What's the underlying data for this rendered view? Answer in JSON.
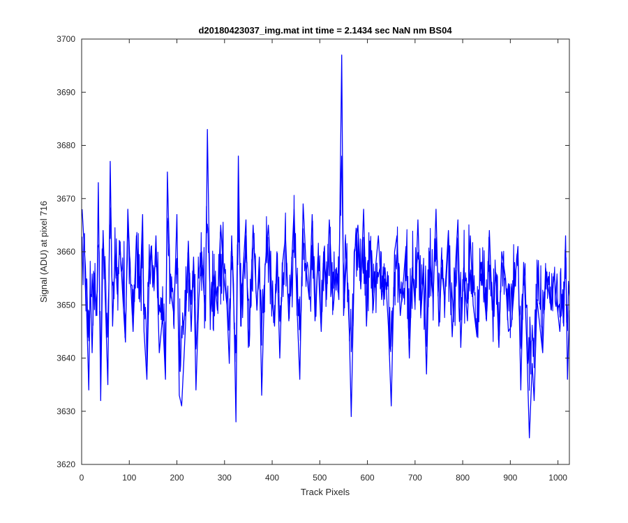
{
  "chart_data": {
    "type": "line",
    "title": "d20180423037_img.mat int time = 2.1434 sec  NaN nm BS04",
    "xlabel": "Track Pixels",
    "ylabel": "Signal (ADU) at pixel 716",
    "xlim": [
      0,
      1024
    ],
    "ylim": [
      3620,
      3700
    ],
    "xticks": [
      0,
      100,
      200,
      300,
      400,
      500,
      600,
      700,
      800,
      900,
      1000
    ],
    "yticks": [
      3620,
      3630,
      3640,
      3650,
      3660,
      3670,
      3680,
      3690,
      3700
    ],
    "grid": false,
    "line_color": "#0000ff",
    "series": [
      {
        "points": [
          [
            1,
            3668
          ],
          [
            8,
            3657
          ],
          [
            12,
            3644
          ],
          [
            15,
            3634
          ],
          [
            18,
            3655
          ],
          [
            22,
            3641
          ],
          [
            26,
            3656
          ],
          [
            32,
            3648
          ],
          [
            35,
            3673
          ],
          [
            40,
            3632
          ],
          [
            45,
            3664
          ],
          [
            50,
            3650
          ],
          [
            55,
            3635
          ],
          [
            60,
            3677
          ],
          [
            65,
            3646
          ],
          [
            70,
            3660
          ],
          [
            75,
            3652
          ],
          [
            80,
            3662
          ],
          [
            88,
            3649
          ],
          [
            92,
            3643
          ],
          [
            97,
            3668
          ],
          [
            103,
            3654
          ],
          [
            108,
            3645
          ],
          [
            115,
            3663
          ],
          [
            122,
            3651
          ],
          [
            128,
            3667
          ],
          [
            131,
            3645
          ],
          [
            137,
            3636
          ],
          [
            142,
            3656
          ],
          [
            146,
            3661
          ],
          [
            152,
            3653
          ],
          [
            156,
            3663
          ],
          [
            163,
            3641
          ],
          [
            170,
            3648
          ],
          [
            176,
            3636
          ],
          [
            180,
            3675
          ],
          [
            186,
            3653
          ],
          [
            194,
            3648
          ],
          [
            200,
            3667
          ],
          [
            205,
            3633
          ],
          [
            210,
            3631
          ],
          [
            218,
            3646
          ],
          [
            224,
            3662
          ],
          [
            230,
            3645
          ],
          [
            235,
            3659
          ],
          [
            240,
            3634
          ],
          [
            246,
            3651
          ],
          [
            252,
            3660
          ],
          [
            260,
            3647
          ],
          [
            264,
            3683
          ],
          [
            270,
            3648
          ],
          [
            278,
            3656
          ],
          [
            285,
            3649
          ],
          [
            292,
            3665
          ],
          [
            298,
            3656
          ],
          [
            305,
            3650
          ],
          [
            310,
            3639
          ],
          [
            315,
            3663
          ],
          [
            320,
            3648
          ],
          [
            324,
            3628
          ],
          [
            329,
            3678
          ],
          [
            334,
            3646
          ],
          [
            338,
            3655
          ],
          [
            345,
            3666
          ],
          [
            350,
            3642
          ],
          [
            355,
            3652
          ],
          [
            360,
            3665
          ],
          [
            368,
            3649
          ],
          [
            373,
            3659
          ],
          [
            378,
            3633
          ],
          [
            385,
            3657
          ],
          [
            392,
            3665
          ],
          [
            400,
            3651
          ],
          [
            405,
            3646
          ],
          [
            410,
            3660
          ],
          [
            416,
            3640
          ],
          [
            422,
            3658
          ],
          [
            428,
            3663
          ],
          [
            435,
            3647
          ],
          [
            440,
            3656
          ],
          [
            446,
            3668
          ],
          [
            452,
            3650
          ],
          [
            458,
            3636
          ],
          [
            465,
            3669
          ],
          [
            472,
            3656
          ],
          [
            478,
            3651
          ],
          [
            484,
            3667
          ],
          [
            490,
            3647
          ],
          [
            496,
            3659
          ],
          [
            503,
            3645
          ],
          [
            508,
            3660
          ],
          [
            514,
            3651
          ],
          [
            520,
            3666
          ],
          [
            528,
            3649
          ],
          [
            535,
            3657
          ],
          [
            540,
            3651
          ],
          [
            546,
            3697
          ],
          [
            550,
            3648
          ],
          [
            556,
            3659
          ],
          [
            562,
            3645
          ],
          [
            566,
            3629
          ],
          [
            573,
            3660
          ],
          [
            580,
            3665
          ],
          [
            586,
            3653
          ],
          [
            592,
            3668
          ],
          [
            598,
            3646
          ],
          [
            605,
            3662
          ],
          [
            612,
            3649
          ],
          [
            618,
            3658
          ],
          [
            623,
            3663
          ],
          [
            630,
            3651
          ],
          [
            637,
            3657
          ],
          [
            644,
            3646
          ],
          [
            650,
            3631
          ],
          [
            657,
            3660
          ],
          [
            662,
            3663
          ],
          [
            669,
            3648
          ],
          [
            675,
            3654
          ],
          [
            681,
            3661
          ],
          [
            688,
            3640
          ],
          [
            694,
            3657
          ],
          [
            700,
            3650
          ],
          [
            706,
            3666
          ],
          [
            712,
            3648
          ],
          [
            718,
            3656
          ],
          [
            724,
            3637
          ],
          [
            730,
            3660
          ],
          [
            738,
            3651
          ],
          [
            744,
            3668
          ],
          [
            750,
            3646
          ],
          [
            756,
            3657
          ],
          [
            762,
            3651
          ],
          [
            770,
            3664
          ],
          [
            778,
            3644
          ],
          [
            784,
            3656
          ],
          [
            790,
            3666
          ],
          [
            796,
            3642
          ],
          [
            802,
            3657
          ],
          [
            810,
            3647
          ],
          [
            816,
            3663
          ],
          [
            822,
            3650
          ],
          [
            830,
            3644
          ],
          [
            838,
            3658
          ],
          [
            845,
            3652
          ],
          [
            850,
            3647
          ],
          [
            856,
            3664
          ],
          [
            862,
            3649
          ],
          [
            870,
            3656
          ],
          [
            876,
            3642
          ],
          [
            882,
            3660
          ],
          [
            890,
            3655
          ],
          [
            896,
            3645
          ],
          [
            902,
            3646
          ],
          [
            910,
            3655
          ],
          [
            916,
            3661
          ],
          [
            922,
            3634
          ],
          [
            928,
            3658
          ],
          [
            934,
            3644
          ],
          [
            940,
            3625
          ],
          [
            946,
            3639
          ],
          [
            950,
            3632
          ],
          [
            956,
            3651
          ],
          [
            962,
            3646
          ],
          [
            968,
            3641
          ],
          [
            974,
            3657
          ],
          [
            980,
            3653
          ],
          [
            986,
            3649
          ],
          [
            992,
            3656
          ],
          [
            998,
            3650
          ],
          [
            1004,
            3645
          ],
          [
            1008,
            3652
          ],
          [
            1012,
            3646
          ],
          [
            1016,
            3663
          ],
          [
            1020,
            3636
          ],
          [
            1024,
            3649
          ]
        ]
      }
    ]
  }
}
